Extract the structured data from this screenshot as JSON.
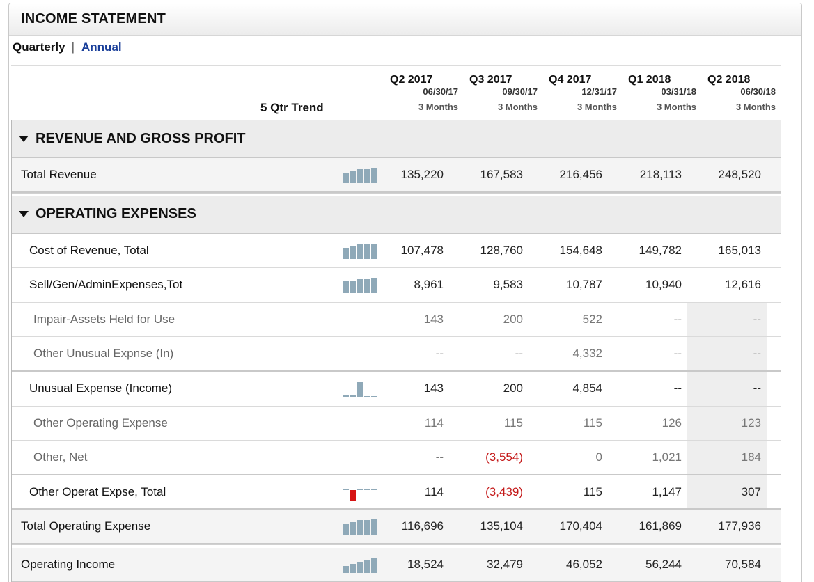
{
  "title": "INCOME STATEMENT",
  "toggle": {
    "current": "Quarterly",
    "separator": "|",
    "other": "Annual"
  },
  "trend_header": "5 Qtr Trend",
  "columns": [
    {
      "quarter": "Q2 2017",
      "date": "06/30/17",
      "months": "3 Months"
    },
    {
      "quarter": "Q3 2017",
      "date": "09/30/17",
      "months": "3 Months"
    },
    {
      "quarter": "Q4 2017",
      "date": "12/31/17",
      "months": "3 Months"
    },
    {
      "quarter": "Q1 2018",
      "date": "03/31/18",
      "months": "3 Months"
    },
    {
      "quarter": "Q2 2018",
      "date": "06/30/18",
      "months": "3 Months"
    }
  ],
  "sections": {
    "revenue": "REVENUE AND GROSS PROFIT",
    "opex": "OPERATING EXPENSES"
  },
  "rows": {
    "total_revenue": {
      "label": "Total Revenue",
      "values": [
        "135,220",
        "167,583",
        "216,456",
        "218,113",
        "248,520"
      ],
      "trend": [
        135220,
        167583,
        216456,
        218113,
        248520
      ]
    },
    "cost_of_revenue": {
      "label": "Cost of Revenue, Total",
      "values": [
        "107,478",
        "128,760",
        "154,648",
        "149,782",
        "165,013"
      ],
      "trend": [
        107478,
        128760,
        154648,
        149782,
        165013
      ]
    },
    "sga": {
      "label": "Sell/Gen/AdminExpenses,Tot",
      "values": [
        "8,961",
        "9,583",
        "10,787",
        "10,940",
        "12,616"
      ],
      "trend": [
        8961,
        9583,
        10787,
        10940,
        12616
      ]
    },
    "impair": {
      "label": "Impair-Assets Held for Use",
      "values": [
        "143",
        "200",
        "522",
        "--",
        "--"
      ]
    },
    "other_unusual": {
      "label": "Other Unusual Expnse (In)",
      "values": [
        "--",
        "--",
        "4,332",
        "--",
        "--"
      ]
    },
    "unusual": {
      "label": "Unusual Expense (Income)",
      "values": [
        "143",
        "200",
        "4,854",
        "--",
        "--"
      ],
      "trend": [
        143,
        200,
        4854,
        0,
        0
      ]
    },
    "other_operating": {
      "label": "Other Operating Expense",
      "values": [
        "114",
        "115",
        "115",
        "126",
        "123"
      ]
    },
    "other_net": {
      "label": "Other, Net",
      "values": [
        "--",
        "(3,554)",
        "0",
        "1,021",
        "184"
      ]
    },
    "other_total": {
      "label": "Other Operat Expse, Total",
      "values": [
        "114",
        "(3,439)",
        "115",
        "1,147",
        "307"
      ],
      "trend": [
        114,
        -3439,
        115,
        1147,
        307
      ]
    },
    "total_opex": {
      "label": "Total Operating Expense",
      "values": [
        "116,696",
        "135,104",
        "170,404",
        "161,869",
        "177,936"
      ],
      "trend": [
        116696,
        135104,
        170404,
        161869,
        177936
      ]
    },
    "operating_income": {
      "label": "Operating Income",
      "values": [
        "18,524",
        "32,479",
        "46,052",
        "56,244",
        "70,584"
      ],
      "trend": [
        18524,
        32479,
        46052,
        56244,
        70584
      ]
    }
  },
  "colors": {
    "trend_bar": "#8fa9b8",
    "negative": "#c41818",
    "link": "#1a3f9a"
  }
}
